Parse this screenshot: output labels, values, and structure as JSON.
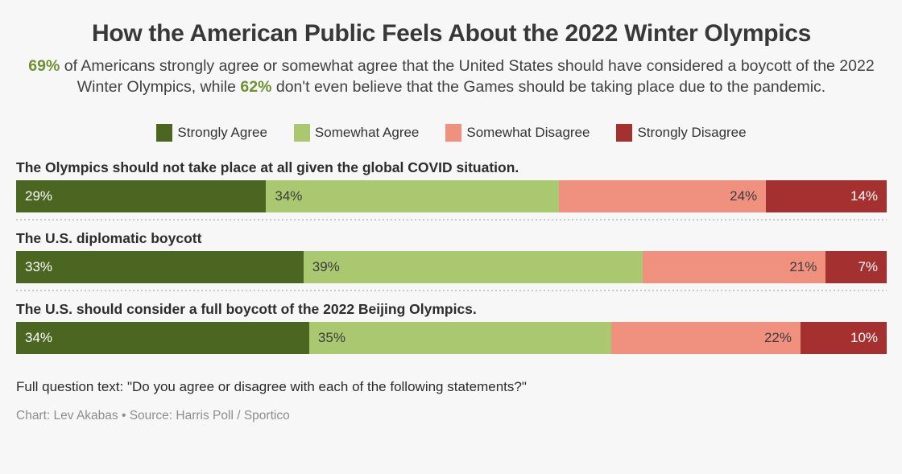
{
  "page": {
    "background": "#f7f7f7",
    "title": "How the American Public Feels About the 2022 Winter Olympics",
    "subtitle": {
      "stat1": "69%",
      "part1": " of Americans strongly agree or somewhat agree that the United States should have considered a boycott of the 2022 Winter Olympics, while ",
      "stat2": "62%",
      "part2": " don't even believe that the Games should be taking place due to the pandemic.",
      "accent_color": "#6f9033"
    },
    "footer": {
      "question": "Full question text: \"Do you agree or disagree with each of the following statements?\"",
      "credit": "Chart: Lev Akabas • Source: Harris Poll / Sportico"
    }
  },
  "legend": {
    "items": [
      {
        "label": "Strongly Agree",
        "color": "#4a6620"
      },
      {
        "label": "Somewhat Agree",
        "color": "#aac870"
      },
      {
        "label": "Somewhat Disagree",
        "color": "#f09180"
      },
      {
        "label": "Strongly Disagree",
        "color": "#a53030"
      }
    ]
  },
  "chart_data": {
    "type": "bar",
    "stacked": true,
    "orientation": "horizontal",
    "unit": "percent",
    "title": "How the American Public Feels About the 2022 Winter Olympics",
    "legend_position": "top-center",
    "series_names": [
      "Strongly Agree",
      "Somewhat Agree",
      "Somewhat Disagree",
      "Strongly Disagree"
    ],
    "series_colors": [
      "#4a6620",
      "#aac870",
      "#f09180",
      "#a53030"
    ],
    "value_label_colors": [
      "#ffffff",
      "#3b3b3b",
      "#3b3b3b",
      "#ffffff"
    ],
    "value_label_align": [
      "left",
      "left",
      "right",
      "right"
    ],
    "rows": [
      {
        "category": "The Olympics should not take place at all given the global COVID situation.",
        "values": [
          29,
          34,
          24,
          14
        ],
        "labels": [
          "29%",
          "34%",
          "24%",
          "14%"
        ]
      },
      {
        "category": "The U.S. diplomatic boycott",
        "values": [
          33,
          39,
          21,
          7
        ],
        "labels": [
          "33%",
          "39%",
          "21%",
          "7%"
        ]
      },
      {
        "category": "The U.S. should consider a full boycott of the 2022 Beijing Olympics.",
        "values": [
          34,
          35,
          22,
          10
        ],
        "labels": [
          "34%",
          "35%",
          "22%",
          "10%"
        ]
      }
    ]
  }
}
